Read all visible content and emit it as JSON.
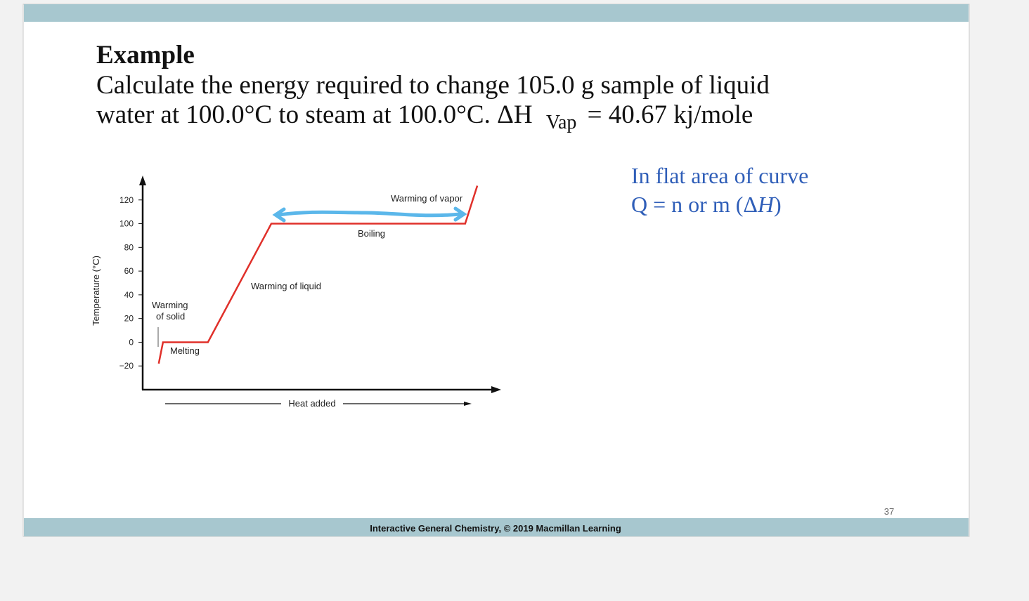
{
  "slide": {
    "title": "Example",
    "problem": {
      "line_1": "Calculate the energy required to change 105.0 g sample of liquid",
      "line_2_before": "water at 100.0°C to steam at 100.0°C. ΔH",
      "subscript": "Vap",
      "line_2_after": "= 40.67 kj/mole"
    },
    "note": {
      "line_1": "In flat area of curve",
      "line_2_before": "Q = n or m (Δ",
      "line_2_italic": "H",
      "line_2_after": ")"
    },
    "footer": "Interactive General Chemistry, © 2019 Macmillan Learning",
    "page_number": "37"
  },
  "chart_data": {
    "type": "line",
    "x_label": "Heat added",
    "y_label": "Temperature (°C)",
    "x": [
      4.5,
      5.7,
      18.3,
      36.1,
      90.5,
      93.9
    ],
    "values": [
      -18,
      0,
      0,
      100,
      100,
      132
    ],
    "color": "#e0302a",
    "xlim": [
      0,
      100
    ],
    "ylim": [
      -40,
      140
    ],
    "yticks": [
      {
        "value": -20,
        "label": "−20"
      },
      0,
      20,
      40,
      60,
      80,
      100,
      120
    ],
    "annotations": [
      "Warming",
      "of solid",
      "Melting",
      "Warming of liquid",
      "Boiling",
      "Warming of vapor"
    ]
  }
}
